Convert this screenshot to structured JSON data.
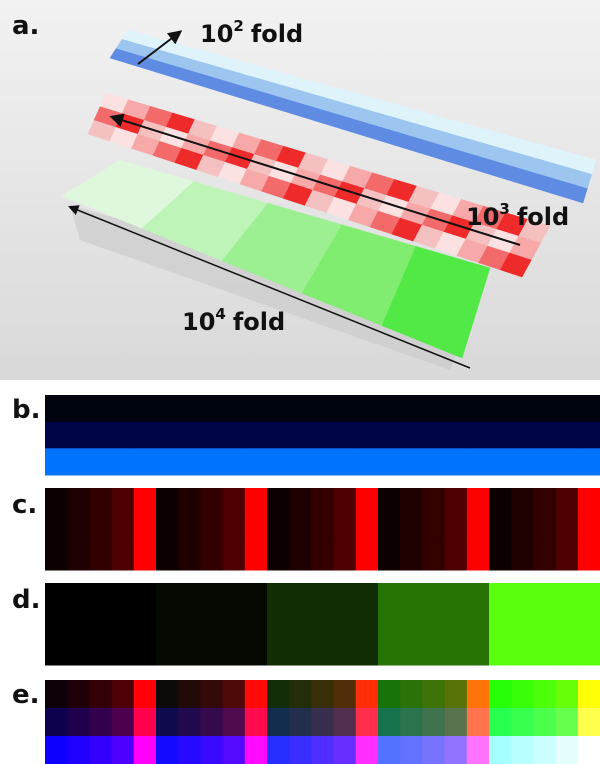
{
  "labels": [
    "a.",
    "b.",
    "c.",
    "d.",
    "e."
  ],
  "annotations": [
    {
      "base": "10",
      "exponent": "2",
      "unit": "fold"
    },
    {
      "base": "10",
      "exponent": "3",
      "unit": "fold"
    },
    {
      "base": "10",
      "exponent": "4",
      "unit": "fold"
    }
  ]
}
